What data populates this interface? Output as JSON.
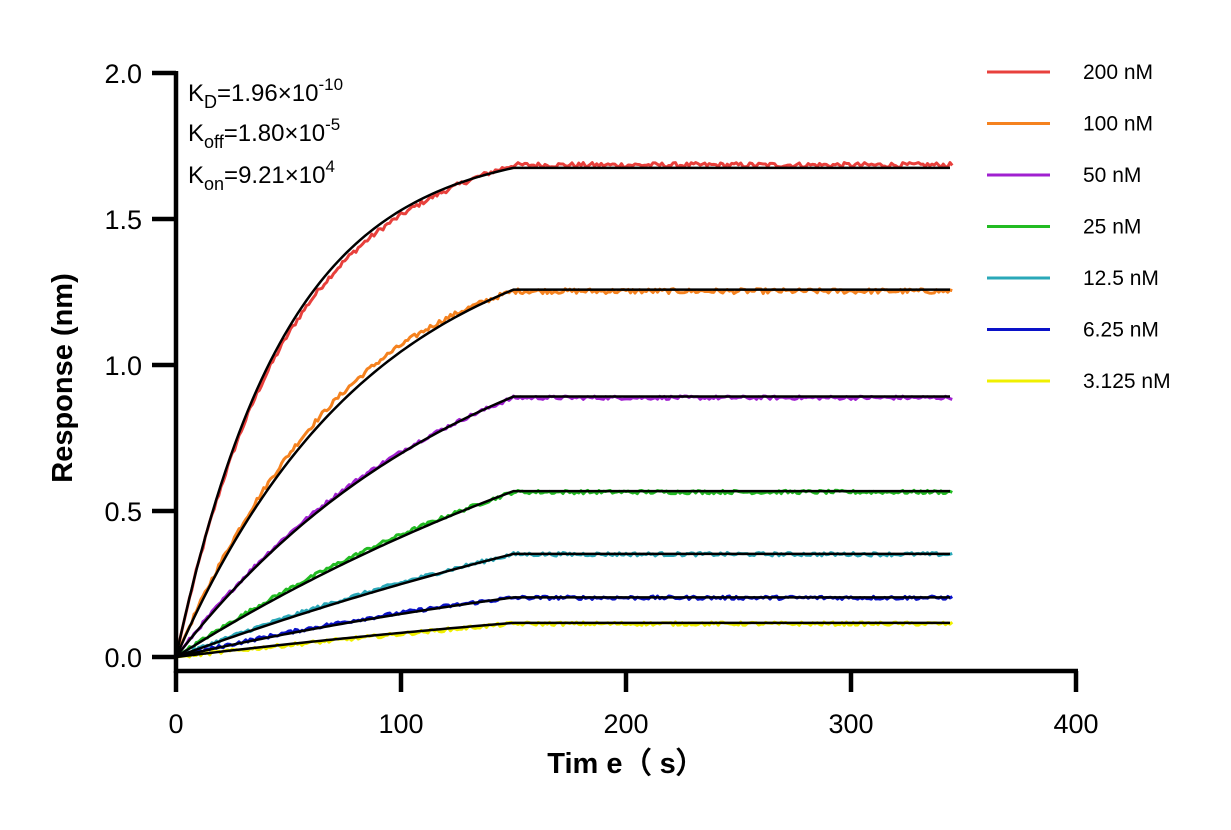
{
  "chart_data": {
    "type": "line",
    "xlabel": "Tim e（ s）",
    "ylabel": "Response (nm)",
    "xlim": [
      0,
      400
    ],
    "ylim": [
      0,
      2.0
    ],
    "x_ticks": [
      "0",
      "100",
      "200",
      "300",
      "400"
    ],
    "y_ticks": [
      "0.0",
      "0.5",
      "1.0",
      "1.5",
      "2.0"
    ],
    "grid": false,
    "legend_position": "right",
    "annotations": {
      "kd": {
        "sym": "K",
        "sub": "D",
        "eq": "=1.96×10",
        "exp": "-10"
      },
      "koff": {
        "sym": "K",
        "sub": "off",
        "eq": "=1.80×10",
        "exp": "-5"
      },
      "kon": {
        "sym": "K",
        "sub": "on",
        "eq": "=9.21×10",
        "exp": "4"
      }
    },
    "association_end": 150,
    "end_time": 345,
    "series": [
      {
        "name": "200 nM",
        "color": "#e8403c",
        "plateau": 1.685,
        "fit_plateau": 1.675,
        "rate": 0.0205,
        "measured_offset": -0.03
      },
      {
        "name": "100 nM",
        "color": "#f5821f",
        "plateau": 1.253,
        "fit_plateau": 1.258,
        "rate": 0.0115,
        "measured_offset": 0.03
      },
      {
        "name": "50 nM",
        "color": "#a020d0",
        "plateau": 0.888,
        "fit_plateau": 0.892,
        "rate": 0.0075,
        "measured_offset": 0.01
      },
      {
        "name": "25 nM",
        "color": "#22bb22",
        "plateau": 0.565,
        "fit_plateau": 0.568,
        "rate": 0.0035,
        "measured_offset": 0.012
      },
      {
        "name": "12.5 nM",
        "color": "#2aa8b8",
        "plateau": 0.352,
        "fit_plateau": 0.353,
        "rate": 0.0025,
        "measured_offset": 0.006
      },
      {
        "name": "6.25 nM",
        "color": "#0a12c8",
        "plateau": 0.203,
        "fit_plateau": 0.204,
        "rate": 0.0035,
        "measured_offset": 0.005
      },
      {
        "name": "3.125 nM",
        "color": "#f0f000",
        "plateau": 0.114,
        "fit_plateau": 0.117,
        "rate": 0.0025,
        "measured_offset": -0.002
      }
    ],
    "fit_color": "#000000"
  }
}
